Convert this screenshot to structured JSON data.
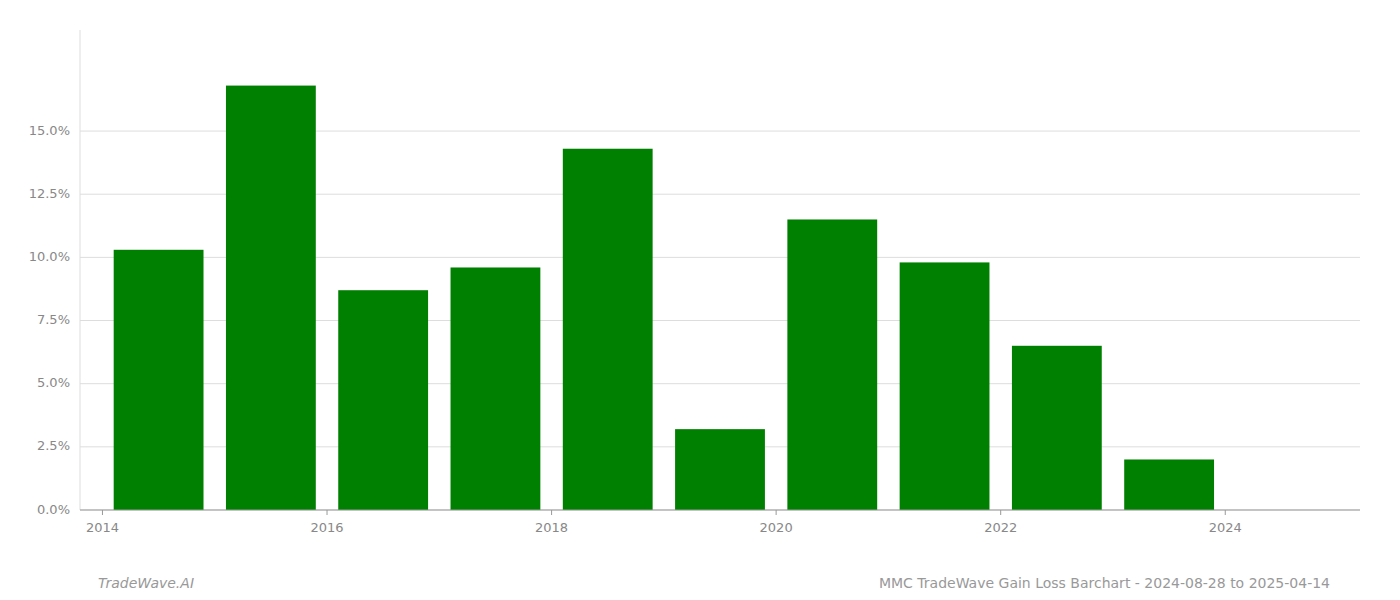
{
  "chart_data": {
    "type": "bar",
    "x": [
      2014,
      2015,
      2016,
      2017,
      2018,
      2019,
      2020,
      2021,
      2022,
      2023,
      2024
    ],
    "values": [
      0.103,
      0.168,
      0.087,
      0.096,
      0.143,
      0.032,
      0.115,
      0.098,
      0.065,
      0.02,
      0.0
    ],
    "color": "#008000",
    "xlim": [
      2013.8,
      2025.2
    ],
    "xticks": [
      2014,
      2016,
      2018,
      2020,
      2022,
      2024
    ],
    "ylim": [
      0,
      0.19
    ],
    "yticks": [
      {
        "value": 0.0,
        "label": "0.0%"
      },
      {
        "value": 0.025,
        "label": "2.5%"
      },
      {
        "value": 0.05,
        "label": "5.0%"
      },
      {
        "value": 0.075,
        "label": "7.5%"
      },
      {
        "value": 0.1,
        "label": "10.0%"
      },
      {
        "value": 0.125,
        "label": "12.5%"
      },
      {
        "value": 0.15,
        "label": "15.0%"
      }
    ],
    "grid": true,
    "annotations": [
      "TradeWave.AI",
      "MMC TradeWave Gain Loss Barchart - 2024-08-28 to 2025-04-14"
    ]
  }
}
